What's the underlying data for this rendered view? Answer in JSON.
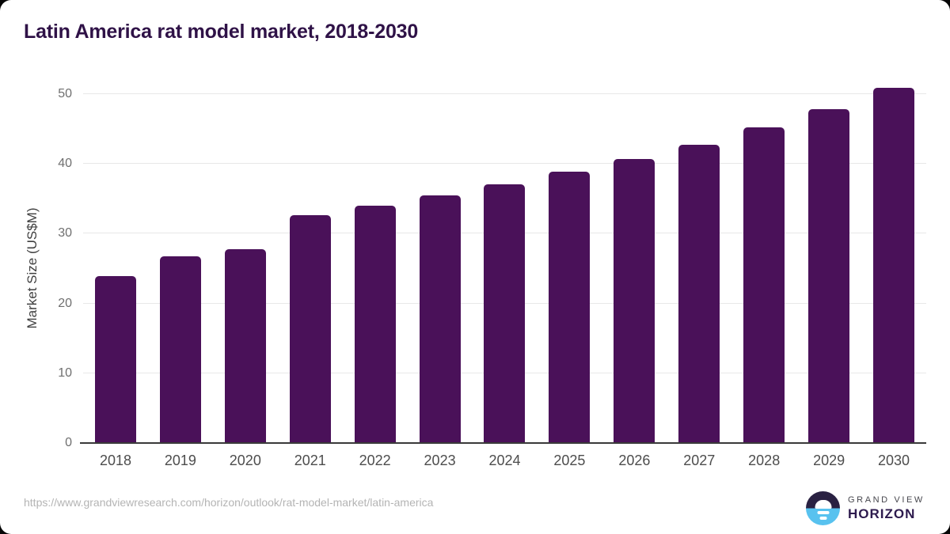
{
  "title": "Latin America rat model market, 2018-2030",
  "source_url": "https://www.grandviewresearch.com/horizon/outlook/rat-model-market/latin-america",
  "logo": {
    "line1": "GRAND VIEW",
    "line2": "HORIZON",
    "icon": "sun-over-horizon-icon"
  },
  "colors": {
    "bar": "#4a1159",
    "title": "#2f1247",
    "gridline": "#e8e8e8",
    "axis_line": "#3a3a3a",
    "y_tick_label": "#6f6f6f",
    "x_tick_label": "#4d4d4d",
    "url_text": "#b4b4b4",
    "logo_navy": "#2a2142",
    "logo_blue": "#58c2ef",
    "logo_text": "#2d1b4e"
  },
  "chart_data": {
    "type": "bar",
    "title": "Latin America rat model market, 2018-2030",
    "categories": [
      "2018",
      "2019",
      "2020",
      "2021",
      "2022",
      "2023",
      "2024",
      "2025",
      "2026",
      "2027",
      "2028",
      "2029",
      "2030"
    ],
    "values": [
      23.9,
      26.8,
      27.8,
      32.6,
      34.0,
      35.5,
      37.1,
      38.9,
      40.7,
      42.8,
      45.2,
      47.8,
      50.9
    ],
    "xlabel": "",
    "ylabel": "Market Size (US$M)",
    "ylim": [
      0,
      50
    ],
    "yticks": [
      0,
      10,
      20,
      30,
      40,
      50
    ],
    "grid": true,
    "legend": false,
    "bar_color": "#4a1159"
  }
}
